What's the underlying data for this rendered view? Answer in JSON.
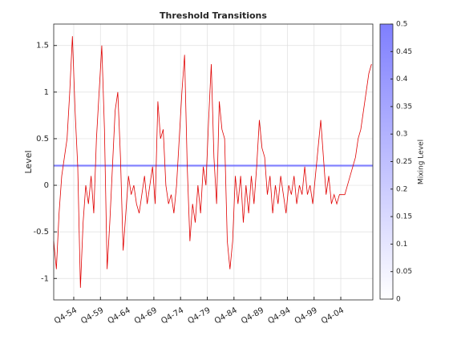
{
  "chart_data": {
    "type": "line",
    "title": "Threshold Transitions",
    "y_label": "Level",
    "x": [
      1951,
      1951.5,
      1952,
      1952.5,
      1953,
      1953.5,
      1954,
      1954.5,
      1955,
      1955.5,
      1956,
      1956.5,
      1957,
      1957.5,
      1958,
      1958.5,
      1959,
      1959.5,
      1960,
      1960.5,
      1961,
      1961.5,
      1962,
      1962.5,
      1963,
      1963.5,
      1964,
      1964.5,
      1965,
      1965.5,
      1966,
      1966.5,
      1967,
      1967.5,
      1968,
      1968.5,
      1969,
      1969.5,
      1970,
      1970.5,
      1971,
      1971.5,
      1972,
      1972.5,
      1973,
      1973.5,
      1974,
      1974.5,
      1975,
      1975.5,
      1976,
      1976.5,
      1977,
      1977.5,
      1978,
      1978.5,
      1979,
      1979.5,
      1980,
      1980.5,
      1981,
      1981.5,
      1982,
      1982.5,
      1983,
      1983.5,
      1984,
      1984.5,
      1985,
      1985.5,
      1986,
      1986.5,
      1987,
      1987.5,
      1988,
      1988.5,
      1989,
      1989.5,
      1990,
      1990.5,
      1991,
      1991.5,
      1992,
      1992.5,
      1993,
      1993.5,
      1994,
      1994.5,
      1995,
      1995.5,
      1996,
      1996.5,
      1997,
      1997.5,
      1998,
      1998.5,
      1999,
      1999.5,
      2000,
      2000.5,
      2001,
      2001.5,
      2002,
      2002.5,
      2003,
      2003.5,
      2004,
      2004.5,
      2005,
      2005.5,
      2006,
      2006.5,
      2007,
      2007.5,
      2008,
      2008.5,
      2009,
      2009.5,
      2010,
      2010.5
    ],
    "series": [
      {
        "color": "#e00000",
        "values": [
          -0.6,
          -0.9,
          -0.3,
          0.1,
          0.3,
          0.5,
          1.0,
          1.6,
          0.8,
          0.2,
          -1.1,
          -0.4,
          0,
          -0.2,
          0.1,
          -0.3,
          0.5,
          1.0,
          1.5,
          0.6,
          -0.9,
          -0.4,
          0.2,
          0.8,
          1.0,
          0.3,
          -0.7,
          -0.3,
          0.1,
          -0.1,
          0,
          -0.2,
          -0.3,
          -0.1,
          0.1,
          -0.2,
          0,
          0.2,
          -0.2,
          0.9,
          0.5,
          0.6,
          0,
          -0.2,
          -0.1,
          -0.3,
          0,
          0.5,
          1.0,
          1.4,
          0.2,
          -0.6,
          -0.2,
          -0.4,
          0,
          -0.3,
          0.2,
          0,
          0.7,
          1.3,
          0.3,
          -0.2,
          0.9,
          0.6,
          0.5,
          -0.6,
          -0.9,
          -0.6,
          0.1,
          -0.2,
          0.1,
          -0.4,
          0,
          -0.3,
          0.1,
          -0.2,
          0.2,
          0.7,
          0.4,
          0.3,
          -0.1,
          0.1,
          -0.3,
          0,
          -0.2,
          0.1,
          -0.1,
          -0.3,
          0,
          -0.1,
          0.1,
          -0.2,
          0,
          -0.1,
          0.2,
          -0.1,
          0,
          -0.2,
          0.1,
          0.4,
          0.7,
          0.3,
          -0.1,
          0.1,
          -0.2,
          -0.1,
          -0.2,
          -0.1,
          -0.1,
          -0.1,
          0,
          0.1,
          0.2,
          0.3,
          0.5,
          0.6,
          0.8,
          1.0,
          1.2,
          1.3
        ]
      }
    ],
    "threshold": 0.21,
    "threshold_color": "#6f6fff",
    "xlim": [
      1951,
      2010.75
    ],
    "xticks": [
      {
        "value": 1954.75,
        "label": "Q4-54"
      },
      {
        "value": 1959.75,
        "label": "Q4-59"
      },
      {
        "value": 1964.75,
        "label": "Q4-64"
      },
      {
        "value": 1969.75,
        "label": "Q4-69"
      },
      {
        "value": 1974.75,
        "label": "Q4-74"
      },
      {
        "value": 1979.75,
        "label": "Q4-79"
      },
      {
        "value": 1984.75,
        "label": "Q4-84"
      },
      {
        "value": 1989.75,
        "label": "Q4-89"
      },
      {
        "value": 1994.75,
        "label": "Q4-94"
      },
      {
        "value": 1999.75,
        "label": "Q4-99"
      },
      {
        "value": 2004.75,
        "label": "Q4-04"
      }
    ],
    "ylim": [
      -1.23,
      1.73
    ],
    "yticks": [
      -1,
      -0.5,
      0,
      0.5,
      1,
      1.5
    ],
    "grid": true,
    "colorbar": {
      "label": "Mixing Level",
      "lim": [
        0,
        0.5
      ],
      "ticks": [
        0,
        0.05,
        0.1,
        0.15,
        0.2,
        0.25,
        0.3,
        0.35,
        0.4,
        0.45,
        0.5
      ],
      "colors": [
        "#ffffff",
        "#7f7fff"
      ]
    }
  }
}
